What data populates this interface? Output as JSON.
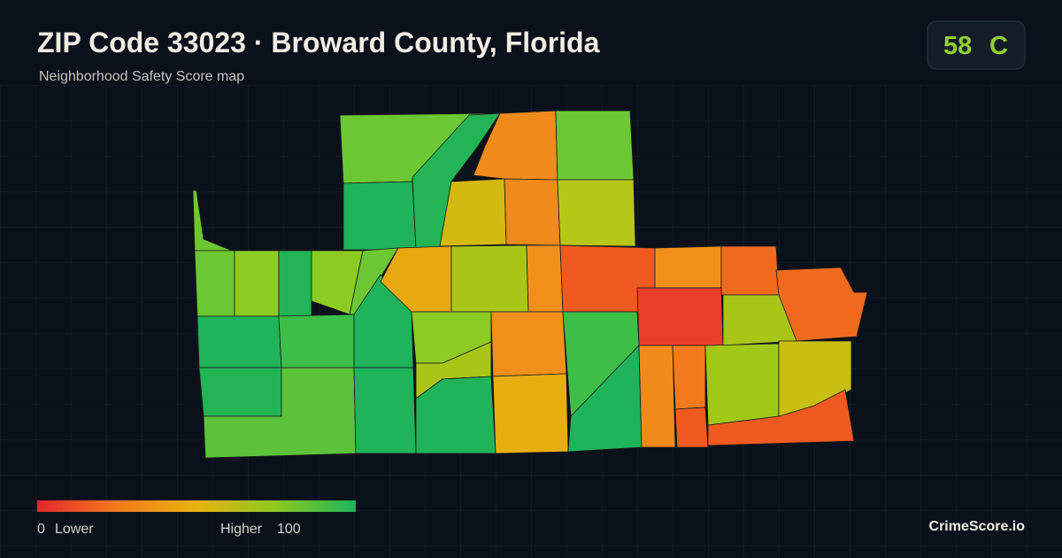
{
  "header": {
    "title": "ZIP Code 33023 · Broward County, Florida",
    "subtitle": "Neighborhood Safety Score map"
  },
  "score": {
    "value": 58,
    "grade": "C"
  },
  "legend": {
    "min": 0,
    "min_label": "Lower",
    "max_label": "Higher",
    "max": 100
  },
  "footer": {
    "brand": "CrimeScore.io"
  }
}
